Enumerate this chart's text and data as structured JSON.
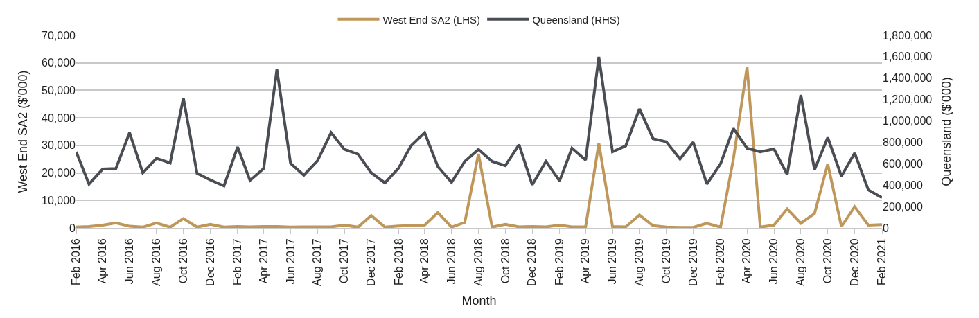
{
  "chart_data": {
    "type": "line",
    "xlabel": "Month",
    "ylabel": "West End SA2 ($'000)",
    "y2label": "Queensland ($'000)",
    "x": [
      "2016-02",
      "2016-03",
      "2016-04",
      "2016-05",
      "2016-06",
      "2016-07",
      "2016-08",
      "2016-09",
      "2016-10",
      "2016-11",
      "2016-12",
      "2017-01",
      "2017-02",
      "2017-03",
      "2017-04",
      "2017-05",
      "2017-06",
      "2017-07",
      "2017-08",
      "2017-09",
      "2017-10",
      "2017-11",
      "2017-12",
      "2018-01",
      "2018-02",
      "2018-03",
      "2018-04",
      "2018-05",
      "2018-06",
      "2018-07",
      "2018-08",
      "2018-09",
      "2018-10",
      "2018-11",
      "2018-12",
      "2019-01",
      "2019-02",
      "2019-03",
      "2019-04",
      "2019-05",
      "2019-06",
      "2019-07",
      "2019-08",
      "2019-09",
      "2019-10",
      "2019-11",
      "2019-12",
      "2020-01",
      "2020-02",
      "2020-03",
      "2020-04",
      "2020-05",
      "2020-06",
      "2020-07",
      "2020-08",
      "2020-09",
      "2020-10",
      "2020-11",
      "2020-12",
      "2021-01",
      "2021-02"
    ],
    "series": [
      {
        "name": "West End SA2 (LHS)",
        "color": "#c0975b",
        "values": [
          300,
          500,
          1000,
          1800,
          600,
          300,
          1800,
          300,
          3400,
          300,
          1300,
          300,
          500,
          400,
          500,
          500,
          300,
          400,
          400,
          400,
          1000,
          300,
          4500,
          300,
          700,
          900,
          1000,
          5600,
          300,
          2000,
          26900,
          300,
          1300,
          400,
          500,
          400,
          1000,
          400,
          400,
          30800,
          500,
          400,
          4700,
          800,
          300,
          200,
          200,
          1700,
          300,
          25000,
          58500,
          300,
          1000,
          6900,
          1700,
          5200,
          23300,
          500,
          7700,
          1000,
          1200
        ]
      },
      {
        "name": "Queensland (RHS)",
        "color": "#4a4e54",
        "axis": "y2",
        "values": [
          711000,
          410000,
          550000,
          555000,
          890000,
          515000,
          651000,
          607000,
          1213000,
          511000,
          448000,
          393000,
          756000,
          444000,
          555000,
          1481000,
          604000,
          493000,
          627000,
          890000,
          734000,
          689000,
          515000,
          421000,
          560000,
          767000,
          890000,
          573000,
          426000,
          622000,
          734000,
          622000,
          582000,
          778000,
          403000,
          622000,
          440000,
          745000,
          634000,
          1599000,
          711000,
          767000,
          1113000,
          834000,
          805000,
          644000,
          801000,
          410000,
          600000,
          930000,
          745000,
          711000,
          738000,
          500000,
          1242000,
          544000,
          845000,
          484000,
          700000,
          355000,
          283000
        ]
      }
    ],
    "xlim": [
      "2016-02",
      "2021-02"
    ],
    "xticks": [
      {
        "value": "2016-02",
        "label": "Feb 2016"
      },
      {
        "value": "2016-04",
        "label": "Apr 2016"
      },
      {
        "value": "2016-06",
        "label": "Jun 2016"
      },
      {
        "value": "2016-08",
        "label": "Aug 2016"
      },
      {
        "value": "2016-10",
        "label": "Oct 2016"
      },
      {
        "value": "2016-12",
        "label": "Dec 2016"
      },
      {
        "value": "2017-02",
        "label": "Feb 2017"
      },
      {
        "value": "2017-04",
        "label": "Apr 2017"
      },
      {
        "value": "2017-06",
        "label": "Jun 2017"
      },
      {
        "value": "2017-08",
        "label": "Aug 2017"
      },
      {
        "value": "2017-10",
        "label": "Oct 2017"
      },
      {
        "value": "2017-12",
        "label": "Dec 2017"
      },
      {
        "value": "2018-02",
        "label": "Feb 2018"
      },
      {
        "value": "2018-04",
        "label": "Apr 2018"
      },
      {
        "value": "2018-06",
        "label": "Jun 2018"
      },
      {
        "value": "2018-08",
        "label": "Aug 2018"
      },
      {
        "value": "2018-10",
        "label": "Oct 2018"
      },
      {
        "value": "2018-12",
        "label": "Dec 2018"
      },
      {
        "value": "2019-02",
        "label": "Feb 2019"
      },
      {
        "value": "2019-04",
        "label": "Apr 2019"
      },
      {
        "value": "2019-06",
        "label": "Jun 2019"
      },
      {
        "value": "2019-08",
        "label": "Aug 2019"
      },
      {
        "value": "2019-10",
        "label": "Oct 2019"
      },
      {
        "value": "2019-12",
        "label": "Dec 2019"
      },
      {
        "value": "2020-02",
        "label": "Feb 2020"
      },
      {
        "value": "2020-04",
        "label": "Apr 2020"
      },
      {
        "value": "2020-06",
        "label": "Jun 2020"
      },
      {
        "value": "2020-08",
        "label": "Aug 2020"
      },
      {
        "value": "2020-10",
        "label": "Oct 2020"
      },
      {
        "value": "2020-12",
        "label": "Dec 2020"
      },
      {
        "value": "2021-02",
        "label": "Feb 2021"
      }
    ],
    "ylim": [
      0,
      70000
    ],
    "yticks": [
      0,
      {
        "value": 10000,
        "label": "10,000"
      },
      {
        "value": 20000,
        "label": "20,000"
      },
      {
        "value": 30000,
        "label": "30,000"
      },
      {
        "value": 40000,
        "label": "40,000"
      },
      {
        "value": 50000,
        "label": "50,000"
      },
      {
        "value": 60000,
        "label": "60,000"
      },
      {
        "value": 70000,
        "label": "70,000"
      }
    ],
    "y2lim": [
      0,
      1800000
    ],
    "y2ticks": [
      0,
      {
        "value": 200000,
        "label": "200,000"
      },
      {
        "value": 400000,
        "label": "400,000"
      },
      {
        "value": 600000,
        "label": "600,000"
      },
      {
        "value": 800000,
        "label": "800,000"
      },
      {
        "value": 1000000,
        "label": "1,000,000"
      },
      {
        "value": 1200000,
        "label": "1,200,000"
      },
      {
        "value": 1400000,
        "label": "1,400,000"
      },
      {
        "value": 1600000,
        "label": "1,600,000"
      },
      {
        "value": 1800000,
        "label": "1,800,000"
      }
    ],
    "grid": "y",
    "legend": "top",
    "line_style": "solid",
    "marker": "none"
  }
}
